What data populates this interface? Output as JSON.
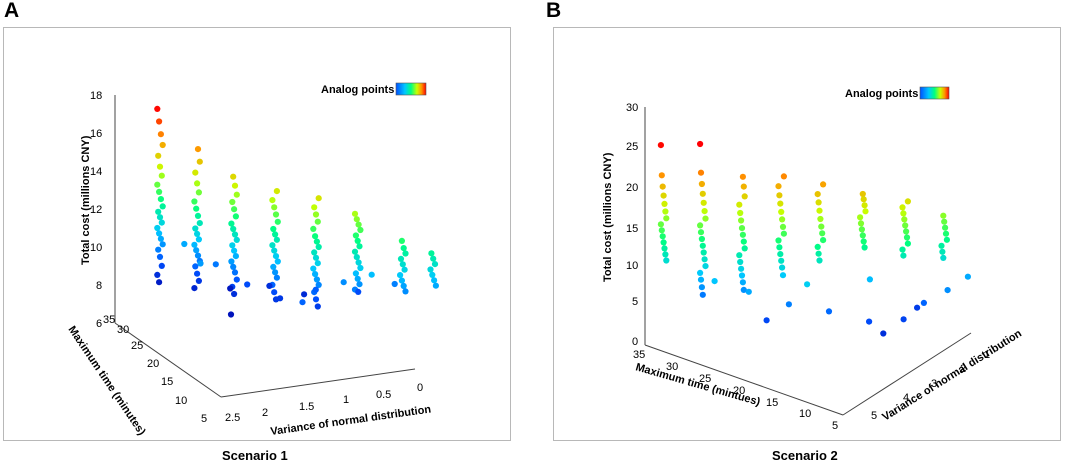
{
  "panels": [
    {
      "letter": "A",
      "caption": "Scenario 1"
    },
    {
      "letter": "B",
      "caption": "Scenario 2"
    }
  ],
  "chart_data": [
    {
      "type": "scatter",
      "title": "Scenario 1",
      "zlabel": "Total cost (millions CNY)",
      "ylabel": "Maximum time (minutes)",
      "xlabel": "Variance of normal distribution",
      "legend": "Analog points",
      "legend_position": "top-right",
      "z_ticks": [
        "6",
        "8",
        "10",
        "12",
        "14",
        "16",
        "18"
      ],
      "y_ticks": [
        "5",
        "10",
        "15",
        "20",
        "25",
        "30",
        "35"
      ],
      "x_ticks": [
        "2.5",
        "2",
        "1.5",
        "1",
        "0.5",
        "0"
      ],
      "zlim": [
        6,
        18
      ],
      "ylim": [
        5,
        35
      ],
      "xlim": [
        0,
        2.5
      ],
      "columns": [
        {
          "x": 2.5,
          "t": 35,
          "z": [
            16.2,
            15.5,
            14.8,
            14.2,
            13.6,
            13.0,
            12.5,
            12.0,
            11.6,
            11.2,
            10.8,
            10.5,
            10.2,
            9.9,
            9.6,
            9.3,
            9.0,
            8.7,
            8.4,
            8.0,
            7.5,
            7.0,
            6.6
          ]
        },
        {
          "x": 2.25,
          "t": 30,
          "z": [
            14.5,
            13.8,
            13.2,
            12.6,
            12.1,
            11.6,
            11.2,
            10.8,
            10.4,
            10.1,
            9.8,
            9.5,
            9.2,
            8.9,
            8.6,
            8.3,
            8.0,
            7.6,
            7.2,
            6.8
          ]
        },
        {
          "x": 2.0,
          "t": 25,
          "z": [
            13.5,
            13.0,
            12.5,
            12.1,
            11.7,
            11.3,
            10.9,
            10.6,
            10.3,
            10.0,
            9.7,
            9.4,
            9.1,
            8.8,
            8.5,
            8.2,
            7.8,
            7.4,
            7.0
          ]
        },
        {
          "x": 1.7,
          "t": 20,
          "z": [
            13.2,
            12.7,
            12.3,
            11.9,
            11.5,
            11.1,
            10.8,
            10.5,
            10.2,
            9.9,
            9.6,
            9.3,
            9.0,
            8.7,
            8.4,
            8.0,
            7.6,
            7.2
          ]
        },
        {
          "x": 1.4,
          "t": 15,
          "z": [
            13.3,
            12.8,
            12.4,
            12.0,
            11.6,
            11.2,
            10.9,
            10.6,
            10.3,
            10.0,
            9.7,
            9.4,
            9.1,
            8.8,
            8.5,
            8.1,
            7.7,
            7.3
          ]
        },
        {
          "x": 1.0,
          "t": 12,
          "z": [
            12.6,
            12.3,
            12.0,
            11.7,
            11.4,
            11.1,
            10.8,
            10.5,
            10.2,
            9.9,
            9.6,
            9.3,
            9.0,
            8.7,
            8.4
          ]
        },
        {
          "x": 0.6,
          "t": 8,
          "z": [
            11.4,
            11.0,
            10.7,
            10.4,
            10.1,
            9.8,
            9.5,
            9.2,
            8.9,
            8.6
          ]
        },
        {
          "x": 0.3,
          "t": 6,
          "z": [
            10.8,
            10.5,
            10.2,
            9.9,
            9.6,
            9.3,
            9.0
          ]
        }
      ],
      "scatter": [
        {
          "x": 2.3,
          "t": 32,
          "z": 9.0
        },
        {
          "x": 2.1,
          "t": 28,
          "z": 8.3
        },
        {
          "x": 1.9,
          "t": 24,
          "z": 7.6
        },
        {
          "x": 1.6,
          "t": 20,
          "z": 7.2
        },
        {
          "x": 1.3,
          "t": 17,
          "z": 7.9
        },
        {
          "x": 1.1,
          "t": 14,
          "z": 8.6
        },
        {
          "x": 0.9,
          "t": 11,
          "z": 9.3
        },
        {
          "x": 1.8,
          "t": 30,
          "z": 6.5
        },
        {
          "x": 1.5,
          "t": 26,
          "z": 7.0
        },
        {
          "x": 2.2,
          "t": 22,
          "z": 6.4
        },
        {
          "x": 1.2,
          "t": 22,
          "z": 6.9
        },
        {
          "x": 0.8,
          "t": 16,
          "z": 7.6
        },
        {
          "x": 2.4,
          "t": 26,
          "z": 8.8
        },
        {
          "x": 1.7,
          "t": 13,
          "z": 8.0
        },
        {
          "x": 0.5,
          "t": 12,
          "z": 8.4
        }
      ],
      "colors": [
        "#0000a8",
        "#0050ff",
        "#00c8ff",
        "#00ff80",
        "#c8ff00",
        "#ff9600",
        "#ff0000",
        "#ff00c8"
      ]
    },
    {
      "type": "scatter",
      "title": "Scenario 2",
      "zlabel": "Total cost (millions CNY)",
      "ylabel": "Maximum time (mintues)",
      "xlabel": "Variance of normal distribution",
      "legend": "Analog points",
      "legend_position": "top-right",
      "z_ticks": [
        "0",
        "5",
        "10",
        "15",
        "20",
        "25",
        "30"
      ],
      "y_ticks": [
        "35",
        "30",
        "25",
        "20",
        "15",
        "10",
        "5"
      ],
      "x_ticks": [
        "5",
        "4",
        "3",
        "2",
        "1"
      ],
      "zlim": [
        0,
        30
      ],
      "ylim": [
        5,
        35
      ],
      "xlim": [
        1,
        5
      ],
      "columns": [
        {
          "x": 5.0,
          "t": 34,
          "z": [
            25.5,
            21.5,
            20.0,
            18.8,
            17.7,
            16.7,
            15.8,
            15.0,
            14.2,
            13.4,
            12.6,
            11.8,
            11.0,
            10.2
          ]
        },
        {
          "x": 4.6,
          "t": 30,
          "z": [
            25.8,
            22.0,
            20.5,
            19.2,
            18.0,
            16.9,
            15.9,
            15.0,
            14.1,
            13.2,
            12.3,
            11.4,
            10.5,
            9.6,
            8.7,
            7.8,
            6.8,
            5.8
          ]
        },
        {
          "x": 4.2,
          "t": 26,
          "z": [
            21.6,
            20.3,
            19.0,
            17.9,
            16.8,
            15.8,
            14.8,
            13.9,
            13.0,
            12.1,
            11.2,
            10.3,
            9.4,
            8.5,
            7.6,
            6.6
          ]
        },
        {
          "x": 3.8,
          "t": 22,
          "z": [
            21.8,
            20.5,
            19.3,
            18.2,
            17.1,
            16.1,
            15.1,
            14.2,
            13.3,
            12.4,
            11.5,
            10.6,
            9.7,
            8.7
          ]
        },
        {
          "x": 3.4,
          "t": 18,
          "z": [
            20.9,
            19.6,
            18.5,
            17.4,
            16.3,
            15.3,
            14.4,
            13.5,
            12.6,
            11.7,
            10.8
          ]
        },
        {
          "x": 2.9,
          "t": 14,
          "z": [
            19.5,
            18.8,
            18.0,
            17.2,
            16.4,
            15.6,
            14.8,
            14.0,
            13.2,
            12.4
          ]
        },
        {
          "x": 2.4,
          "t": 10,
          "z": [
            18.4,
            17.6,
            16.8,
            16.0,
            15.2,
            14.4,
            13.6,
            12.8,
            12.0,
            11.2
          ]
        },
        {
          "x": 1.8,
          "t": 7,
          "z": [
            15.8,
            15.0,
            14.2,
            13.4,
            12.6,
            11.8,
            11.0,
            10.2
          ]
        }
      ],
      "scatter": [
        {
          "x": 4.4,
          "t": 24,
          "z": 7.5
        },
        {
          "x": 4.0,
          "t": 20,
          "z": 6.0
        },
        {
          "x": 3.6,
          "t": 16,
          "z": 5.2
        },
        {
          "x": 3.2,
          "t": 12,
          "z": 4.0
        },
        {
          "x": 3.0,
          "t": 10,
          "z": 2.5
        },
        {
          "x": 2.6,
          "t": 9,
          "z": 3.6
        },
        {
          "x": 2.2,
          "t": 8,
          "z": 5.0
        },
        {
          "x": 1.9,
          "t": 6,
          "z": 6.5
        },
        {
          "x": 1.5,
          "t": 5,
          "z": 7.5
        },
        {
          "x": 4.7,
          "t": 28,
          "z": 8.5
        },
        {
          "x": 3.9,
          "t": 18,
          "z": 9.0
        },
        {
          "x": 2.8,
          "t": 13,
          "z": 8.2
        },
        {
          "x": 4.2,
          "t": 22,
          "z": 3.8
        },
        {
          "x": 2.0,
          "t": 10,
          "z": 3.2
        }
      ],
      "colors": [
        "#0000a8",
        "#0050ff",
        "#00c8ff",
        "#00ff80",
        "#c8ff00",
        "#ff9600",
        "#ff0000",
        "#ff00c8"
      ]
    }
  ]
}
